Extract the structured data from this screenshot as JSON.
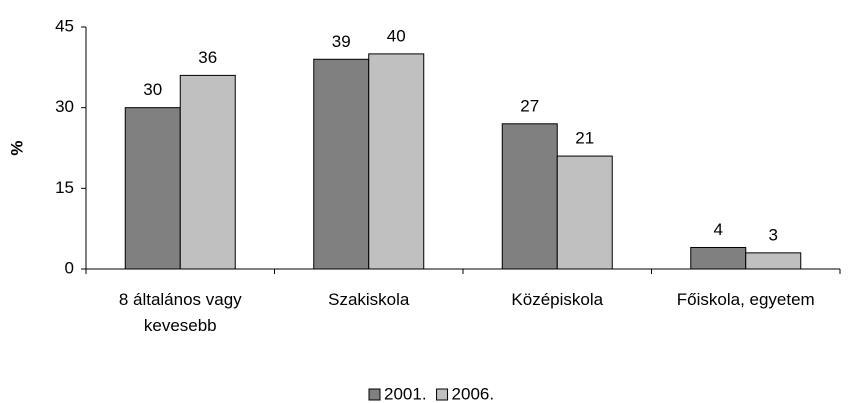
{
  "chart_data": {
    "type": "bar",
    "ylabel": "%",
    "categories": [
      "8 általános vagy kevesebb",
      "Szakiskola",
      "Középiskola",
      "Főiskola, egyetem"
    ],
    "series": [
      {
        "name": "2001.",
        "color": "#808080",
        "values": [
          30,
          39,
          27,
          4
        ]
      },
      {
        "name": "2006.",
        "color": "#c0c0c0",
        "values": [
          36,
          40,
          21,
          3
        ]
      }
    ],
    "ylim": [
      0,
      45
    ],
    "yticks": [
      0,
      15,
      30,
      45
    ],
    "legend": "bottom"
  }
}
